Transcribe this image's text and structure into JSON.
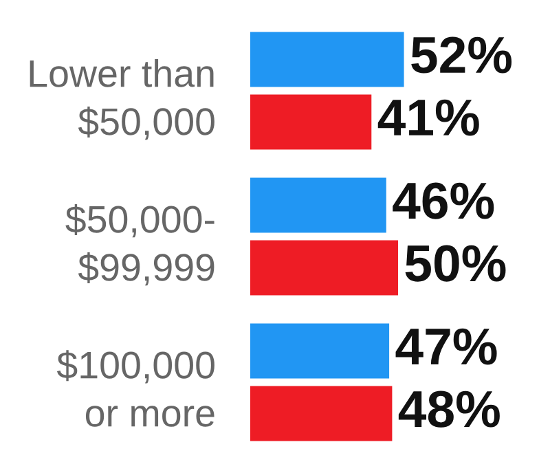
{
  "chart_data": {
    "type": "bar",
    "orientation": "horizontal",
    "categories": [
      "Lower than\n$50,000",
      "$50,000-\n$99,999",
      "$100,000\nor more"
    ],
    "series": [
      {
        "color": "#2196f3",
        "values": [
          52,
          46,
          47
        ],
        "value_labels": [
          "52%",
          "46%",
          "47%"
        ]
      },
      {
        "color": "#ee1c25",
        "values": [
          41,
          50,
          48
        ],
        "value_labels": [
          "41%",
          "50%",
          "48%"
        ]
      }
    ],
    "tick_labels": "y"
  }
}
